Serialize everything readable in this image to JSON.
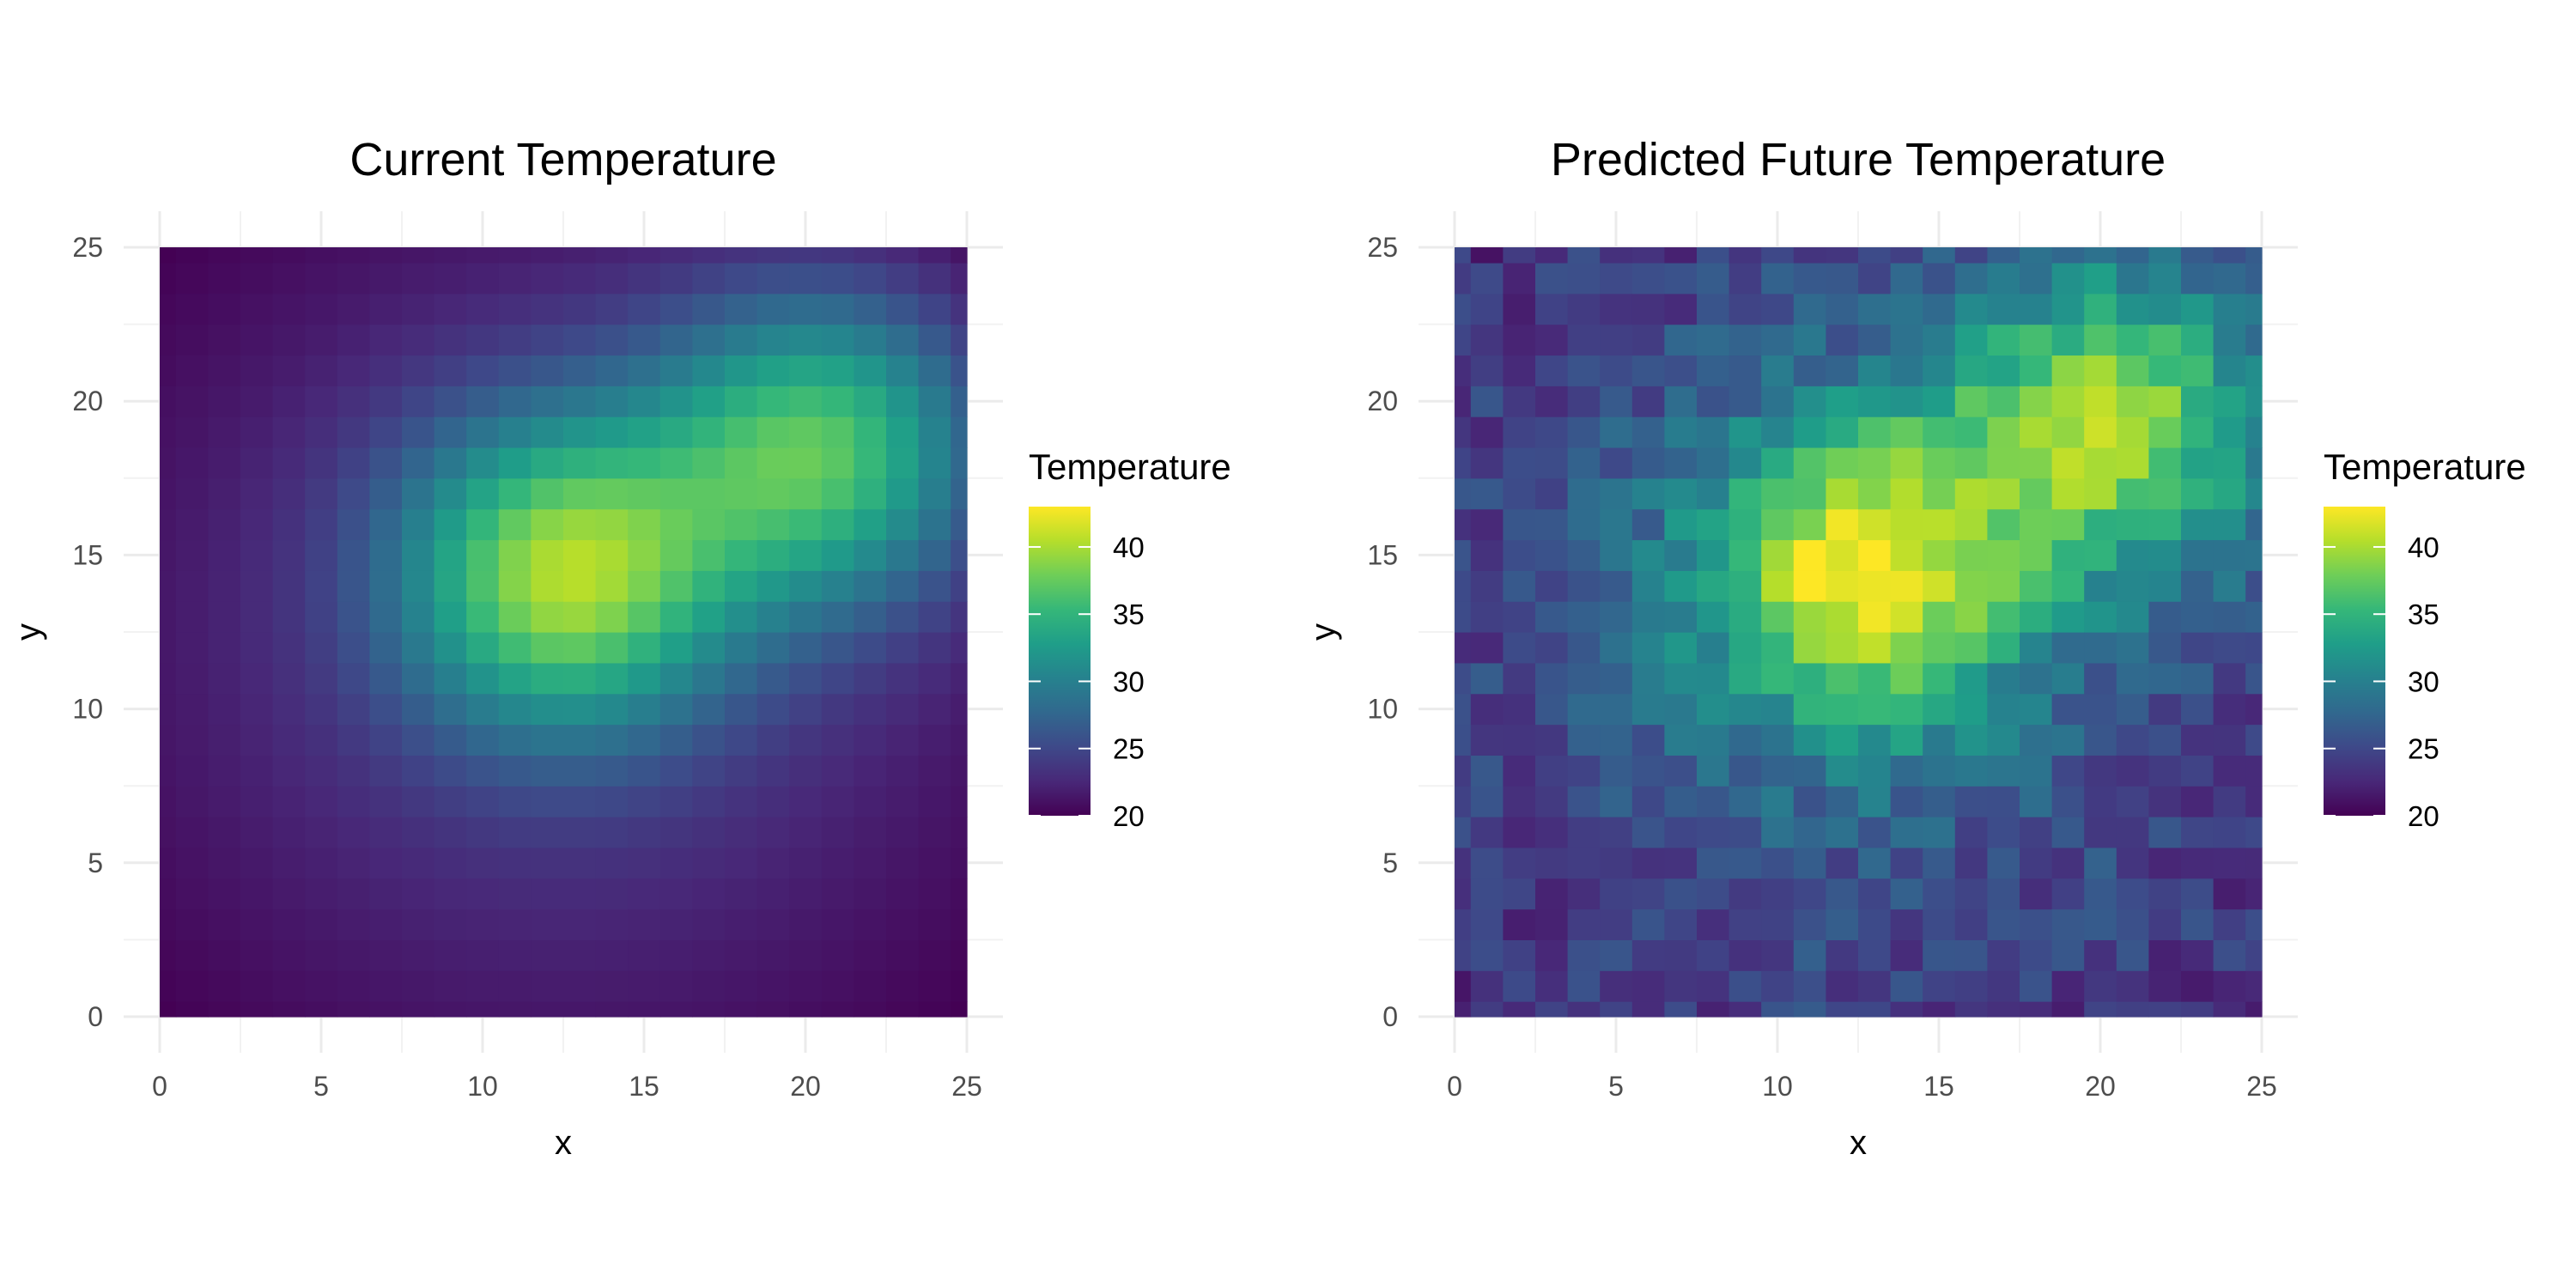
{
  "chart_data": [
    {
      "type": "heatmap",
      "title": "Current Temperature",
      "xlabel": "x",
      "ylabel": "y",
      "xlim": [
        0,
        25
      ],
      "ylim": [
        0,
        25
      ],
      "x_ticks": [
        "0",
        "5",
        "10",
        "15",
        "20",
        "25"
      ],
      "y_ticks": [
        "0",
        "5",
        "10",
        "15",
        "20",
        "25"
      ],
      "grid": true,
      "colormap": "viridis",
      "legend": {
        "title": "Temperature",
        "position": "right",
        "range": [
          20,
          43
        ],
        "labels": [
          "20",
          "25",
          "30",
          "35",
          "40"
        ]
      },
      "grid_x": [
        0,
        1,
        2,
        3,
        4,
        5,
        6,
        7,
        8,
        9,
        10,
        11,
        12,
        13,
        14,
        15,
        16,
        17,
        18,
        19,
        20,
        21,
        22,
        23,
        24,
        25
      ],
      "grid_y": [
        0,
        1,
        2,
        3,
        4,
        5,
        6,
        7,
        8,
        9,
        10,
        11,
        12,
        13,
        14,
        15,
        16,
        17,
        18,
        19,
        20,
        21,
        22,
        23,
        24,
        25
      ],
      "hotspots": [
        {
          "x": 12.5,
          "y": 14.5,
          "peak": 40.5
        },
        {
          "x": 20.5,
          "y": 18.5,
          "peak": 39.5
        }
      ],
      "baseline": {
        "min": 20,
        "center": 25
      },
      "noise": 0
    },
    {
      "type": "heatmap",
      "title": "Predicted Future Temperature",
      "xlabel": "x",
      "ylabel": "y",
      "xlim": [
        0,
        25
      ],
      "ylim": [
        0,
        25
      ],
      "x_ticks": [
        "0",
        "5",
        "10",
        "15",
        "20",
        "25"
      ],
      "y_ticks": [
        "0",
        "5",
        "10",
        "15",
        "20",
        "25"
      ],
      "grid": true,
      "colormap": "viridis",
      "legend": {
        "title": "Temperature",
        "position": "right",
        "range": [
          20,
          43
        ],
        "labels": [
          "20",
          "25",
          "30",
          "35",
          "40"
        ]
      },
      "grid_x": [
        0,
        1,
        2,
        3,
        4,
        5,
        6,
        7,
        8,
        9,
        10,
        11,
        12,
        13,
        14,
        15,
        16,
        17,
        18,
        19,
        20,
        21,
        22,
        23,
        24,
        25
      ],
      "grid_y": [
        0,
        1,
        2,
        3,
        4,
        5,
        6,
        7,
        8,
        9,
        10,
        11,
        12,
        13,
        14,
        15,
        16,
        17,
        18,
        19,
        20,
        21,
        22,
        23,
        24,
        25
      ],
      "hotspots": [
        {
          "x": 12.5,
          "y": 14.5,
          "peak": 43
        },
        {
          "x": 20.5,
          "y": 19.5,
          "peak": 42.5
        }
      ],
      "baseline": {
        "min": 23,
        "center": 28
      },
      "noise": 2.2
    }
  ],
  "colors": {
    "panel_background": "#ffffff",
    "grid_major": "#ebebeb",
    "grid_minor": "#f2f2f2",
    "tick_text": "#4d4d4d",
    "title_text": "#000000"
  }
}
